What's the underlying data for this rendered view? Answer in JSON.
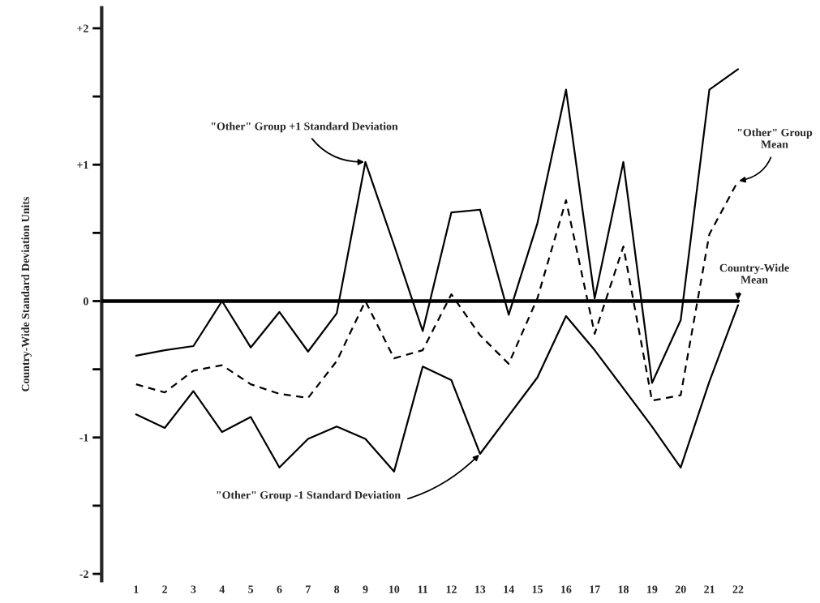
{
  "chart_data": {
    "type": "line",
    "ylabel": "Country-Wide Standard Deviation Units",
    "categories": [
      "1",
      "2",
      "3",
      "4",
      "5",
      "6",
      "7",
      "8",
      "9",
      "10",
      "11",
      "12",
      "13",
      "14",
      "15",
      "16",
      "17",
      "18",
      "19",
      "20",
      "21",
      "22"
    ],
    "series": [
      {
        "color": "#000000",
        "line_style": "solid",
        "values": [
          -0.4,
          -0.36,
          -0.33,
          0.0,
          -0.34,
          -0.08,
          -0.37,
          -0.09,
          1.02,
          0.41,
          -0.22,
          0.65,
          0.67,
          -0.1,
          0.57,
          1.55,
          0.02,
          1.02,
          -0.6,
          -0.14,
          1.55,
          1.7
        ]
      },
      {
        "color": "#000000",
        "line_style": "dashed",
        "values": [
          -0.61,
          -0.67,
          -0.51,
          -0.47,
          -0.61,
          -0.68,
          -0.71,
          -0.44,
          0.0,
          -0.42,
          -0.36,
          0.05,
          -0.25,
          -0.46,
          0.02,
          0.74,
          -0.24,
          0.4,
          -0.73,
          -0.69,
          0.49,
          0.88
        ]
      },
      {
        "color": "#000000",
        "line_style": "solid",
        "values": [
          -0.83,
          -0.93,
          -0.66,
          -0.96,
          -0.85,
          -1.22,
          -1.01,
          -0.92,
          -1.01,
          -1.25,
          -0.48,
          -0.58,
          -1.12,
          -0.84,
          -0.56,
          -0.11,
          -0.36,
          -0.64,
          -0.92,
          -1.22,
          -0.59,
          -0.03
        ]
      }
    ],
    "ref_lines": [
      {
        "axis": "y",
        "value": 0,
        "color": "#000000",
        "line_style": "solid"
      }
    ],
    "annotations": [
      {
        "text": "\"Other\" Group +1 Standard Deviation",
        "x": "9",
        "y": 1.02
      },
      {
        "text": "\"Other\" Group -1 Standard Deviation",
        "x": "13",
        "y": -1.12
      },
      {
        "text": "\"Other\" Group\nMean",
        "x": "22",
        "y": 0.88
      },
      {
        "text": "Country-Wide\nMean",
        "x": "22",
        "y": 0
      }
    ],
    "ylim": [
      -2.05,
      2.15
    ],
    "yticks": [
      {
        "value": 2,
        "label": "+2"
      },
      {
        "value": 1.5,
        "label": null
      },
      {
        "value": 1,
        "label": "+1"
      },
      {
        "value": 0.5,
        "label": null
      },
      0,
      {
        "value": -0.5,
        "label": null
      },
      -1,
      {
        "value": -1.5,
        "label": null
      },
      -2
    ],
    "grid": false,
    "legend": false,
    "marker": "none"
  }
}
